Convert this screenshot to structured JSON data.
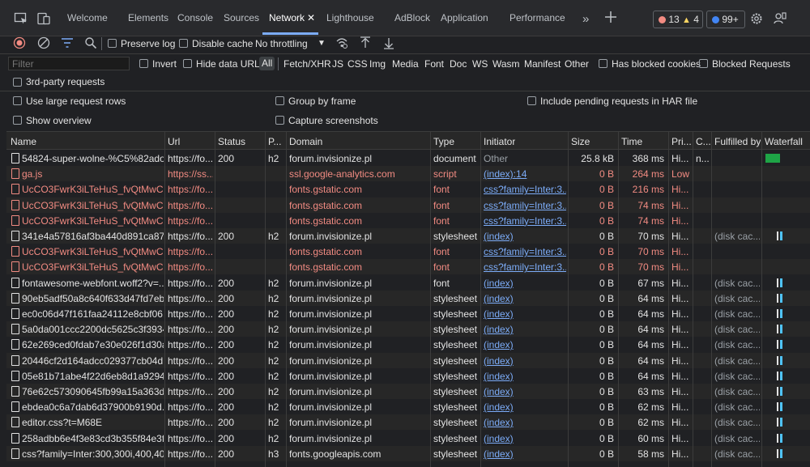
{
  "tabs": [
    {
      "label": "Welcome"
    },
    {
      "label": "Elements"
    },
    {
      "label": "Console"
    },
    {
      "label": "Sources"
    },
    {
      "label": "Network"
    },
    {
      "label": "Lighthouse"
    },
    {
      "label": "AdBlock"
    },
    {
      "label": "Application"
    },
    {
      "label": "Performance"
    }
  ],
  "badges": {
    "errors": "13",
    "warnings": "4",
    "info": "99+"
  },
  "colors": {
    "error": "#f28b82",
    "warning": "#fdd663",
    "info": "#4285f4",
    "accent": "#7cacf8",
    "bar_green": "#1ea446",
    "bar_blue": "#4fc3f7"
  },
  "toolbar": {
    "preserve_log": "Preserve log",
    "disable_cache": "Disable cache",
    "throttling": "No throttling"
  },
  "filter": {
    "placeholder": "Filter",
    "invert": "Invert",
    "hide_data_urls": "Hide data URLs",
    "types": [
      "All",
      "Fetch/XHR",
      "JS",
      "CSS",
      "Img",
      "Media",
      "Font",
      "Doc",
      "WS",
      "Wasm",
      "Manifest",
      "Other"
    ],
    "blocked_cookies": "Has blocked cookies",
    "blocked_requests": "Blocked Requests",
    "third_party": "3rd-party requests"
  },
  "settings": {
    "large_rows": "Use large request rows",
    "group_by_frame": "Group by frame",
    "include_pending": "Include pending requests in HAR file",
    "show_overview": "Show overview",
    "capture_screenshots": "Capture screenshots"
  },
  "table": {
    "columns": [
      "Name",
      "Url",
      "Status",
      "P...",
      "Domain",
      "Type",
      "Initiator",
      "Size",
      "Time",
      "Pri...",
      "C...",
      "Fulfilled by",
      "Waterfall"
    ],
    "rows": [
      {
        "name": "54824-super-wolne-%C5%82ado...",
        "url": "https://fo...",
        "status": "200",
        "proto": "h2",
        "domain": "forum.invisionize.pl",
        "type": "document",
        "initiator": "Other",
        "size": "25.8 kB",
        "time": "368 ms",
        "priority": "Hi...",
        "c": "n...",
        "fulfilled": "",
        "error": false
      },
      {
        "name": "ga.js",
        "url": "https://ss...",
        "status": "",
        "proto": "",
        "domain": "ssl.google-analytics.com",
        "type": "script",
        "initiator": "(index):14",
        "size": "0 B",
        "time": "264 ms",
        "priority": "Low",
        "c": "",
        "fulfilled": "",
        "error": true
      },
      {
        "name": "UcCO3FwrK3iLTeHuS_fvQtMwCp...",
        "url": "https://fo...",
        "status": "",
        "proto": "",
        "domain": "fonts.gstatic.com",
        "type": "font",
        "initiator": "css?family=Inter:3...",
        "size": "0 B",
        "time": "216 ms",
        "priority": "Hi...",
        "c": "",
        "fulfilled": "",
        "error": true
      },
      {
        "name": "UcCO3FwrK3iLTeHuS_fvQtMwCp...",
        "url": "https://fo...",
        "status": "",
        "proto": "",
        "domain": "fonts.gstatic.com",
        "type": "font",
        "initiator": "css?family=Inter:3...",
        "size": "0 B",
        "time": "74 ms",
        "priority": "Hi...",
        "c": "",
        "fulfilled": "",
        "error": true
      },
      {
        "name": "UcCO3FwrK3iLTeHuS_fvQtMwCp...",
        "url": "https://fo...",
        "status": "",
        "proto": "",
        "domain": "fonts.gstatic.com",
        "type": "font",
        "initiator": "css?family=Inter:3...",
        "size": "0 B",
        "time": "74 ms",
        "priority": "Hi...",
        "c": "",
        "fulfilled": "",
        "error": true
      },
      {
        "name": "341e4a57816af3ba440d891ca87...",
        "url": "https://fo...",
        "status": "200",
        "proto": "h2",
        "domain": "forum.invisionize.pl",
        "type": "stylesheet",
        "initiator": "(index)",
        "size": "0 B",
        "time": "70 ms",
        "priority": "Hi...",
        "c": "",
        "fulfilled": "(disk cac...",
        "error": false
      },
      {
        "name": "UcCO3FwrK3iLTeHuS_fvQtMwCp...",
        "url": "https://fo...",
        "status": "",
        "proto": "",
        "domain": "fonts.gstatic.com",
        "type": "font",
        "initiator": "css?family=Inter:3...",
        "size": "0 B",
        "time": "70 ms",
        "priority": "Hi...",
        "c": "",
        "fulfilled": "",
        "error": true
      },
      {
        "name": "UcCO3FwrK3iLTeHuS_fvQtMwCp...",
        "url": "https://fo...",
        "status": "",
        "proto": "",
        "domain": "fonts.gstatic.com",
        "type": "font",
        "initiator": "css?family=Inter:3...",
        "size": "0 B",
        "time": "70 ms",
        "priority": "Hi...",
        "c": "",
        "fulfilled": "",
        "error": true
      },
      {
        "name": "fontawesome-webfont.woff2?v=...",
        "url": "https://fo...",
        "status": "200",
        "proto": "h2",
        "domain": "forum.invisionize.pl",
        "type": "font",
        "initiator": "(index)",
        "size": "0 B",
        "time": "67 ms",
        "priority": "Hi...",
        "c": "",
        "fulfilled": "(disk cac...",
        "error": false
      },
      {
        "name": "90eb5adf50a8c640f633d47fd7eb...",
        "url": "https://fo...",
        "status": "200",
        "proto": "h2",
        "domain": "forum.invisionize.pl",
        "type": "stylesheet",
        "initiator": "(index)",
        "size": "0 B",
        "time": "64 ms",
        "priority": "Hi...",
        "c": "",
        "fulfilled": "(disk cac...",
        "error": false
      },
      {
        "name": "ec0c06d47f161faa24112e8cbf06...",
        "url": "https://fo...",
        "status": "200",
        "proto": "h2",
        "domain": "forum.invisionize.pl",
        "type": "stylesheet",
        "initiator": "(index)",
        "size": "0 B",
        "time": "64 ms",
        "priority": "Hi...",
        "c": "",
        "fulfilled": "(disk cac...",
        "error": false
      },
      {
        "name": "5a0da001ccc2200dc5625c3f3934...",
        "url": "https://fo...",
        "status": "200",
        "proto": "h2",
        "domain": "forum.invisionize.pl",
        "type": "stylesheet",
        "initiator": "(index)",
        "size": "0 B",
        "time": "64 ms",
        "priority": "Hi...",
        "c": "",
        "fulfilled": "(disk cac...",
        "error": false
      },
      {
        "name": "62e269ced0fdab7e30e026f1d30a...",
        "url": "https://fo...",
        "status": "200",
        "proto": "h2",
        "domain": "forum.invisionize.pl",
        "type": "stylesheet",
        "initiator": "(index)",
        "size": "0 B",
        "time": "64 ms",
        "priority": "Hi...",
        "c": "",
        "fulfilled": "(disk cac...",
        "error": false
      },
      {
        "name": "20446cf2d164adcc029377cb04d...",
        "url": "https://fo...",
        "status": "200",
        "proto": "h2",
        "domain": "forum.invisionize.pl",
        "type": "stylesheet",
        "initiator": "(index)",
        "size": "0 B",
        "time": "64 ms",
        "priority": "Hi...",
        "c": "",
        "fulfilled": "(disk cac...",
        "error": false
      },
      {
        "name": "05e81b71abe4f22d6eb8d1a9294...",
        "url": "https://fo...",
        "status": "200",
        "proto": "h2",
        "domain": "forum.invisionize.pl",
        "type": "stylesheet",
        "initiator": "(index)",
        "size": "0 B",
        "time": "64 ms",
        "priority": "Hi...",
        "c": "",
        "fulfilled": "(disk cac...",
        "error": false
      },
      {
        "name": "76e62c573090645fb99a15a363d...",
        "url": "https://fo...",
        "status": "200",
        "proto": "h2",
        "domain": "forum.invisionize.pl",
        "type": "stylesheet",
        "initiator": "(index)",
        "size": "0 B",
        "time": "63 ms",
        "priority": "Hi...",
        "c": "",
        "fulfilled": "(disk cac...",
        "error": false
      },
      {
        "name": "ebdea0c6a7dab6d37900b9190d...",
        "url": "https://fo...",
        "status": "200",
        "proto": "h2",
        "domain": "forum.invisionize.pl",
        "type": "stylesheet",
        "initiator": "(index)",
        "size": "0 B",
        "time": "62 ms",
        "priority": "Hi...",
        "c": "",
        "fulfilled": "(disk cac...",
        "error": false
      },
      {
        "name": "editor.css?t=M68E",
        "url": "https://fo...",
        "status": "200",
        "proto": "h2",
        "domain": "forum.invisionize.pl",
        "type": "stylesheet",
        "initiator": "(index)",
        "size": "0 B",
        "time": "62 ms",
        "priority": "Hi...",
        "c": "",
        "fulfilled": "(disk cac...",
        "error": false
      },
      {
        "name": "258adbb6e4f3e83cd3b355f84e3f...",
        "url": "https://fo...",
        "status": "200",
        "proto": "h2",
        "domain": "forum.invisionize.pl",
        "type": "stylesheet",
        "initiator": "(index)",
        "size": "0 B",
        "time": "60 ms",
        "priority": "Hi...",
        "c": "",
        "fulfilled": "(disk cac...",
        "error": false
      },
      {
        "name": "css?family=Inter:300,300i,400,40...",
        "url": "https://fo...",
        "status": "200",
        "proto": "h3",
        "domain": "fonts.googleapis.com",
        "type": "stylesheet",
        "initiator": "(index)",
        "size": "0 B",
        "time": "58 ms",
        "priority": "Hi...",
        "c": "",
        "fulfilled": "(disk cac...",
        "error": false
      }
    ]
  }
}
